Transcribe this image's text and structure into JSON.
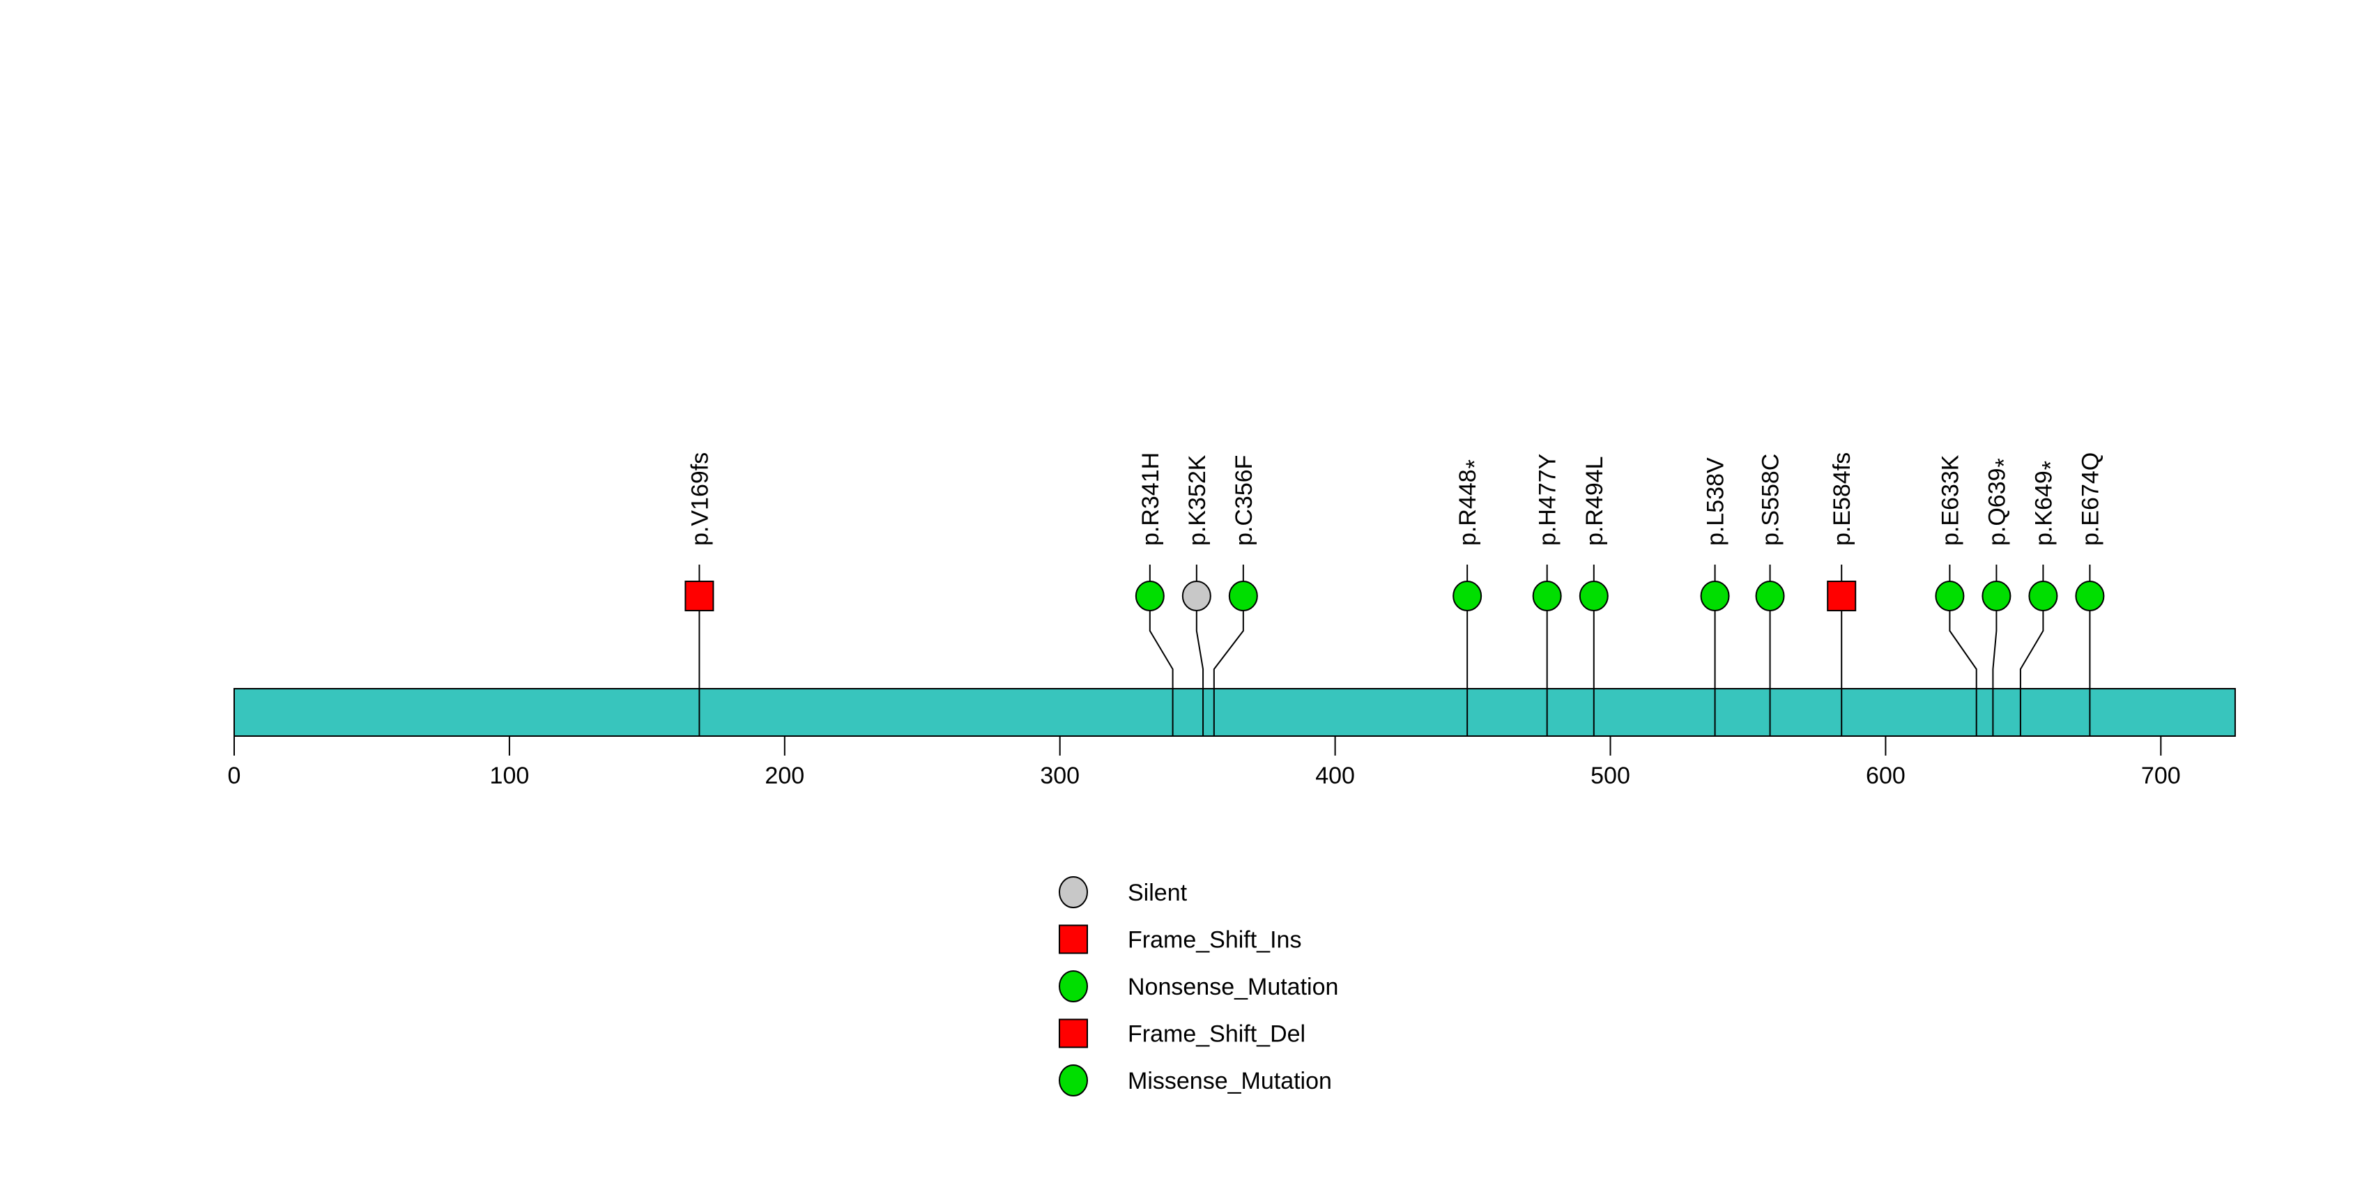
{
  "chart_data": {
    "type": "lollipop",
    "title": "",
    "xlabel": "",
    "ylabel": "",
    "xlim": [
      0,
      727
    ],
    "x_ticks": [
      "0",
      "100",
      "200",
      "300",
      "400",
      "500",
      "600",
      "700"
    ],
    "x_tick_values": [
      0,
      100,
      200,
      300,
      400,
      500,
      600,
      700
    ],
    "protein_length": 727,
    "grid": false,
    "colors": {
      "protein_bar": "#38C5BD",
      "missense_green": "#00DE00",
      "frameshift_red": "#FF0000",
      "silent_gray": "#C8C8C8",
      "line": "#000000",
      "background": "#FFFFFF"
    },
    "mutations": [
      {
        "label": "p.V169fs",
        "position": 169,
        "shape": "square",
        "color": "#FF0000"
      },
      {
        "label": "p.R341H",
        "position": 341,
        "shape": "circle",
        "color": "#00DE00"
      },
      {
        "label": "p.K352K",
        "position": 352,
        "shape": "circle",
        "color": "#C8C8C8"
      },
      {
        "label": "p.C356F",
        "position": 356,
        "shape": "circle",
        "color": "#00DE00"
      },
      {
        "label": "p.R448*",
        "position": 448,
        "shape": "circle",
        "color": "#00DE00"
      },
      {
        "label": "p.H477Y",
        "position": 477,
        "shape": "circle",
        "color": "#00DE00"
      },
      {
        "label": "p.R494L",
        "position": 494,
        "shape": "circle",
        "color": "#00DE00"
      },
      {
        "label": "p.L538V",
        "position": 538,
        "shape": "circle",
        "color": "#00DE00"
      },
      {
        "label": "p.S558C",
        "position": 558,
        "shape": "circle",
        "color": "#00DE00"
      },
      {
        "label": "p.E584fs",
        "position": 584,
        "shape": "square",
        "color": "#FF0000"
      },
      {
        "label": "p.E633K",
        "position": 633,
        "shape": "circle",
        "color": "#00DE00"
      },
      {
        "label": "p.Q639*",
        "position": 639,
        "shape": "circle",
        "color": "#00DE00"
      },
      {
        "label": "p.K649*",
        "position": 649,
        "shape": "circle",
        "color": "#00DE00"
      },
      {
        "label": "p.E674Q",
        "position": 674,
        "shape": "circle",
        "color": "#00DE00"
      }
    ],
    "legend": {
      "position": "bottom-center",
      "items": [
        {
          "label": "Silent",
          "shape": "circle",
          "color": "#C8C8C8"
        },
        {
          "label": "Frame_Shift_Ins",
          "shape": "square",
          "color": "#FF0000"
        },
        {
          "label": "Nonsense_Mutation",
          "shape": "circle",
          "color": "#00DE00"
        },
        {
          "label": "Frame_Shift_Del",
          "shape": "square",
          "color": "#FF0000"
        },
        {
          "label": "Missense_Mutation",
          "shape": "circle",
          "color": "#00DE00"
        }
      ]
    }
  }
}
